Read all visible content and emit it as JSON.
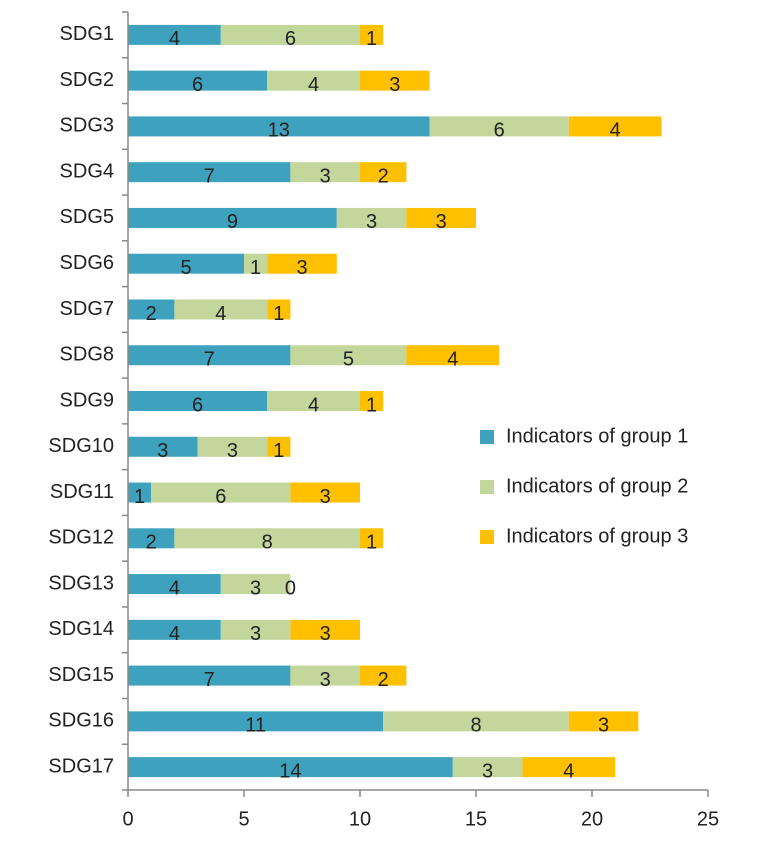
{
  "chart_data": {
    "type": "bar",
    "orientation": "horizontal",
    "stacked": true,
    "categories": [
      "SDG1",
      "SDG2",
      "SDG3",
      "SDG4",
      "SDG5",
      "SDG6",
      "SDG7",
      "SDG8",
      "SDG9",
      "SDG10",
      "SDG11",
      "SDG12",
      "SDG13",
      "SDG14",
      "SDG15",
      "SDG16",
      "SDG17"
    ],
    "series": [
      {
        "name": "Indicators of group 1",
        "color": "#3ea2bf",
        "values": [
          4,
          6,
          13,
          7,
          9,
          5,
          2,
          7,
          6,
          3,
          1,
          2,
          4,
          4,
          7,
          11,
          14
        ]
      },
      {
        "name": "Indicators of group 2",
        "color": "#c3d69b",
        "values": [
          6,
          4,
          6,
          3,
          3,
          1,
          4,
          5,
          4,
          3,
          6,
          8,
          3,
          3,
          3,
          8,
          3
        ]
      },
      {
        "name": "Indicators of group 3",
        "color": "#ffc000",
        "values": [
          1,
          3,
          4,
          2,
          3,
          3,
          1,
          4,
          1,
          1,
          3,
          1,
          0,
          3,
          2,
          3,
          4
        ]
      }
    ],
    "xlim": [
      0,
      25
    ],
    "xticks": [
      0,
      5,
      10,
      15,
      20,
      25
    ],
    "grid": false,
    "legend": "right"
  }
}
